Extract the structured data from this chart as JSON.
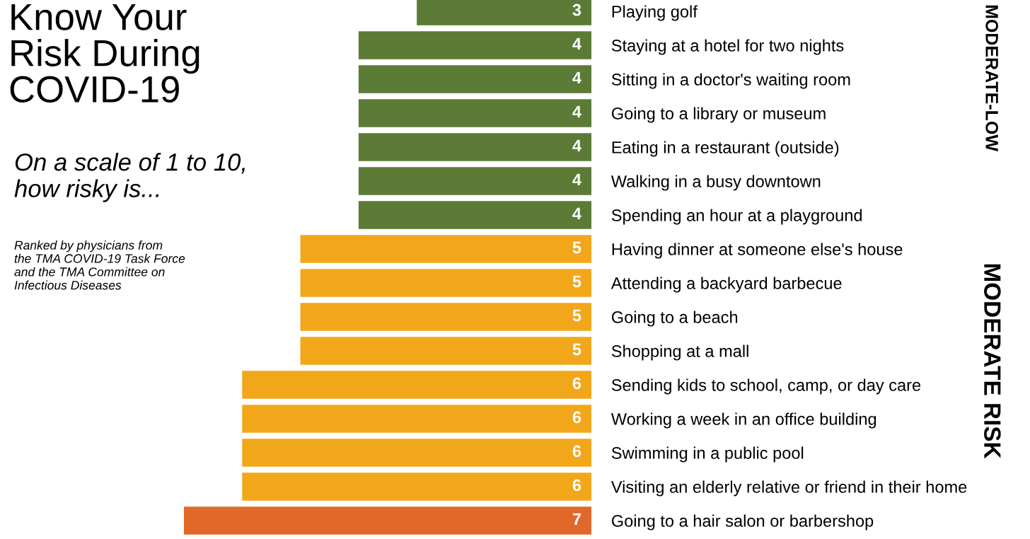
{
  "chart_data": {
    "type": "bar",
    "orientation": "horizontal",
    "title": "Know Your\nRisk During\nCOVID-19",
    "subtitle": "On a scale of 1 to 10,\nhow risky is...",
    "categories": [
      "Playing golf",
      "Staying at a hotel for two nights",
      "Sitting in a doctor's waiting room",
      "Going to a library or museum",
      "Eating in a restaurant (outside)",
      "Walking in a busy downtown",
      "Spending an hour at a playground",
      "Having dinner at someone else's house",
      "Attending a backyard barbecue",
      "Going to a beach",
      "Shopping at a mall",
      "Sending kids to school, camp, or day care",
      "Working a week in an office building",
      "Swimming in a public pool",
      "Visiting an elderly relative or friend in their home",
      "Going to a hair salon or barbershop"
    ],
    "values": [
      3,
      4,
      4,
      4,
      4,
      4,
      4,
      5,
      5,
      5,
      5,
      6,
      6,
      6,
      6,
      7
    ],
    "colors": [
      "#5b7b36",
      "#5b7b36",
      "#5b7b36",
      "#5b7b36",
      "#5b7b36",
      "#5b7b36",
      "#5b7b36",
      "#f2a71b",
      "#f2a71b",
      "#f2a71b",
      "#f2a71b",
      "#f2a71b",
      "#f2a71b",
      "#f2a71b",
      "#f2a71b",
      "#e0692a"
    ],
    "tick_labels": "y",
    "data_labels": true,
    "grid": false,
    "legend": false,
    "annotations": [
      "Ranked by physicians from\nthe TMA COVID-19 Task Force\nand the TMA Committee on\nInfectious Diseases",
      "MODERATE-LOW",
      "MODERATE RISK"
    ]
  }
}
